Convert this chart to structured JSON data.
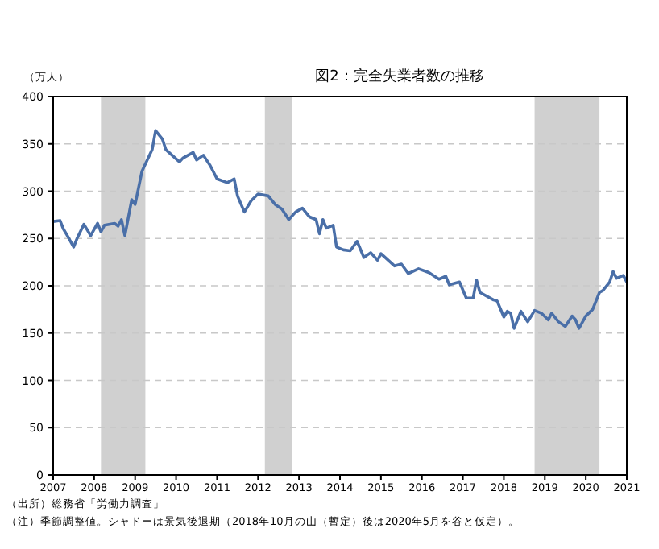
{
  "chart_data": {
    "type": "line",
    "title": "図2：完全失業者数の推移",
    "ylabel": "（万人）",
    "annotations": [
      "（出所）総務省「労働力調査」",
      "（注）季節調整値。シャドーは景気後退期（2018年10月の山（暫定）後は2020年5月を谷と仮定）。"
    ],
    "x": [
      "2007-01",
      "2007-03",
      "2007-04",
      "2007-05",
      "2007-07",
      "2007-08",
      "2007-10",
      "2007-12",
      "2008-02",
      "2008-03",
      "2008-04",
      "2008-07",
      "2008-08",
      "2008-09",
      "2008-10",
      "2008-12",
      "2009-01",
      "2009-03",
      "2009-06",
      "2009-07",
      "2009-09",
      "2009-10",
      "2010-02",
      "2010-03",
      "2010-06",
      "2010-07",
      "2010-09",
      "2010-11",
      "2011-01",
      "2011-04",
      "2011-06",
      "2011-07",
      "2011-09",
      "2011-11",
      "2012-01",
      "2012-04",
      "2012-06",
      "2012-08",
      "2012-10",
      "2012-12",
      "2013-02",
      "2013-04",
      "2013-06",
      "2013-07",
      "2013-08",
      "2013-09",
      "2013-11",
      "2013-12",
      "2014-02",
      "2014-04",
      "2014-06",
      "2014-08",
      "2014-10",
      "2014-12",
      "2015-01",
      "2015-05",
      "2015-07",
      "2015-09",
      "2015-12",
      "2016-03",
      "2016-06",
      "2016-08",
      "2016-09",
      "2016-12",
      "2017-02",
      "2017-04",
      "2017-05",
      "2017-06",
      "2017-10",
      "2017-11",
      "2018-01",
      "2018-02",
      "2018-03",
      "2018-04",
      "2018-06",
      "2018-08",
      "2018-10",
      "2018-12",
      "2019-02",
      "2019-03",
      "2019-05",
      "2019-07",
      "2019-09",
      "2019-10",
      "2019-11",
      "2020-01",
      "2020-03",
      "2020-05",
      "2020-06",
      "2020-08",
      "2020-09",
      "2020-10",
      "2020-12",
      "2021-01"
    ],
    "series": [
      {
        "color": "#4a6fa8",
        "values": [
          268,
          269,
          260,
          254,
          241,
          250,
          265,
          253,
          266,
          257,
          264,
          266,
          263,
          270,
          253,
          291,
          286,
          321,
          344,
          364,
          355,
          344,
          331,
          335,
          341,
          333,
          338,
          327,
          313,
          309,
          313,
          295,
          278,
          290,
          297,
          295,
          286,
          281,
          270,
          278,
          282,
          273,
          270,
          255,
          270,
          261,
          264,
          241,
          238,
          237,
          247,
          230,
          235,
          227,
          234,
          221,
          223,
          213,
          218,
          214,
          207,
          210,
          201,
          204,
          187,
          187,
          206,
          193,
          185,
          184,
          167,
          173,
          171,
          155,
          173,
          162,
          174,
          171,
          164,
          171,
          162,
          157,
          168,
          164,
          155,
          168,
          175,
          193,
          195,
          204,
          215,
          208,
          211,
          204
        ]
      }
    ],
    "xlim": [
      "2007-01",
      "2021-01"
    ],
    "xticks": [
      "2007",
      "2008",
      "2009",
      "2010",
      "2011",
      "2012",
      "2013",
      "2014",
      "2015",
      "2016",
      "2017",
      "2018",
      "2019",
      "2020",
      "2021"
    ],
    "ylim": [
      0,
      400
    ],
    "yticks": [
      0,
      50,
      100,
      150,
      200,
      250,
      300,
      350,
      400
    ],
    "bands": [
      {
        "axis": "x",
        "from": "2008-03",
        "to": "2009-04",
        "color": "#d0d0d0"
      },
      {
        "axis": "x",
        "from": "2012-03",
        "to": "2012-11",
        "color": "#d0d0d0"
      },
      {
        "axis": "x",
        "from": "2018-10",
        "to": "2020-05",
        "color": "#d0d0d0"
      }
    ],
    "grid": "y",
    "line_style": "solid",
    "marker": "none"
  }
}
